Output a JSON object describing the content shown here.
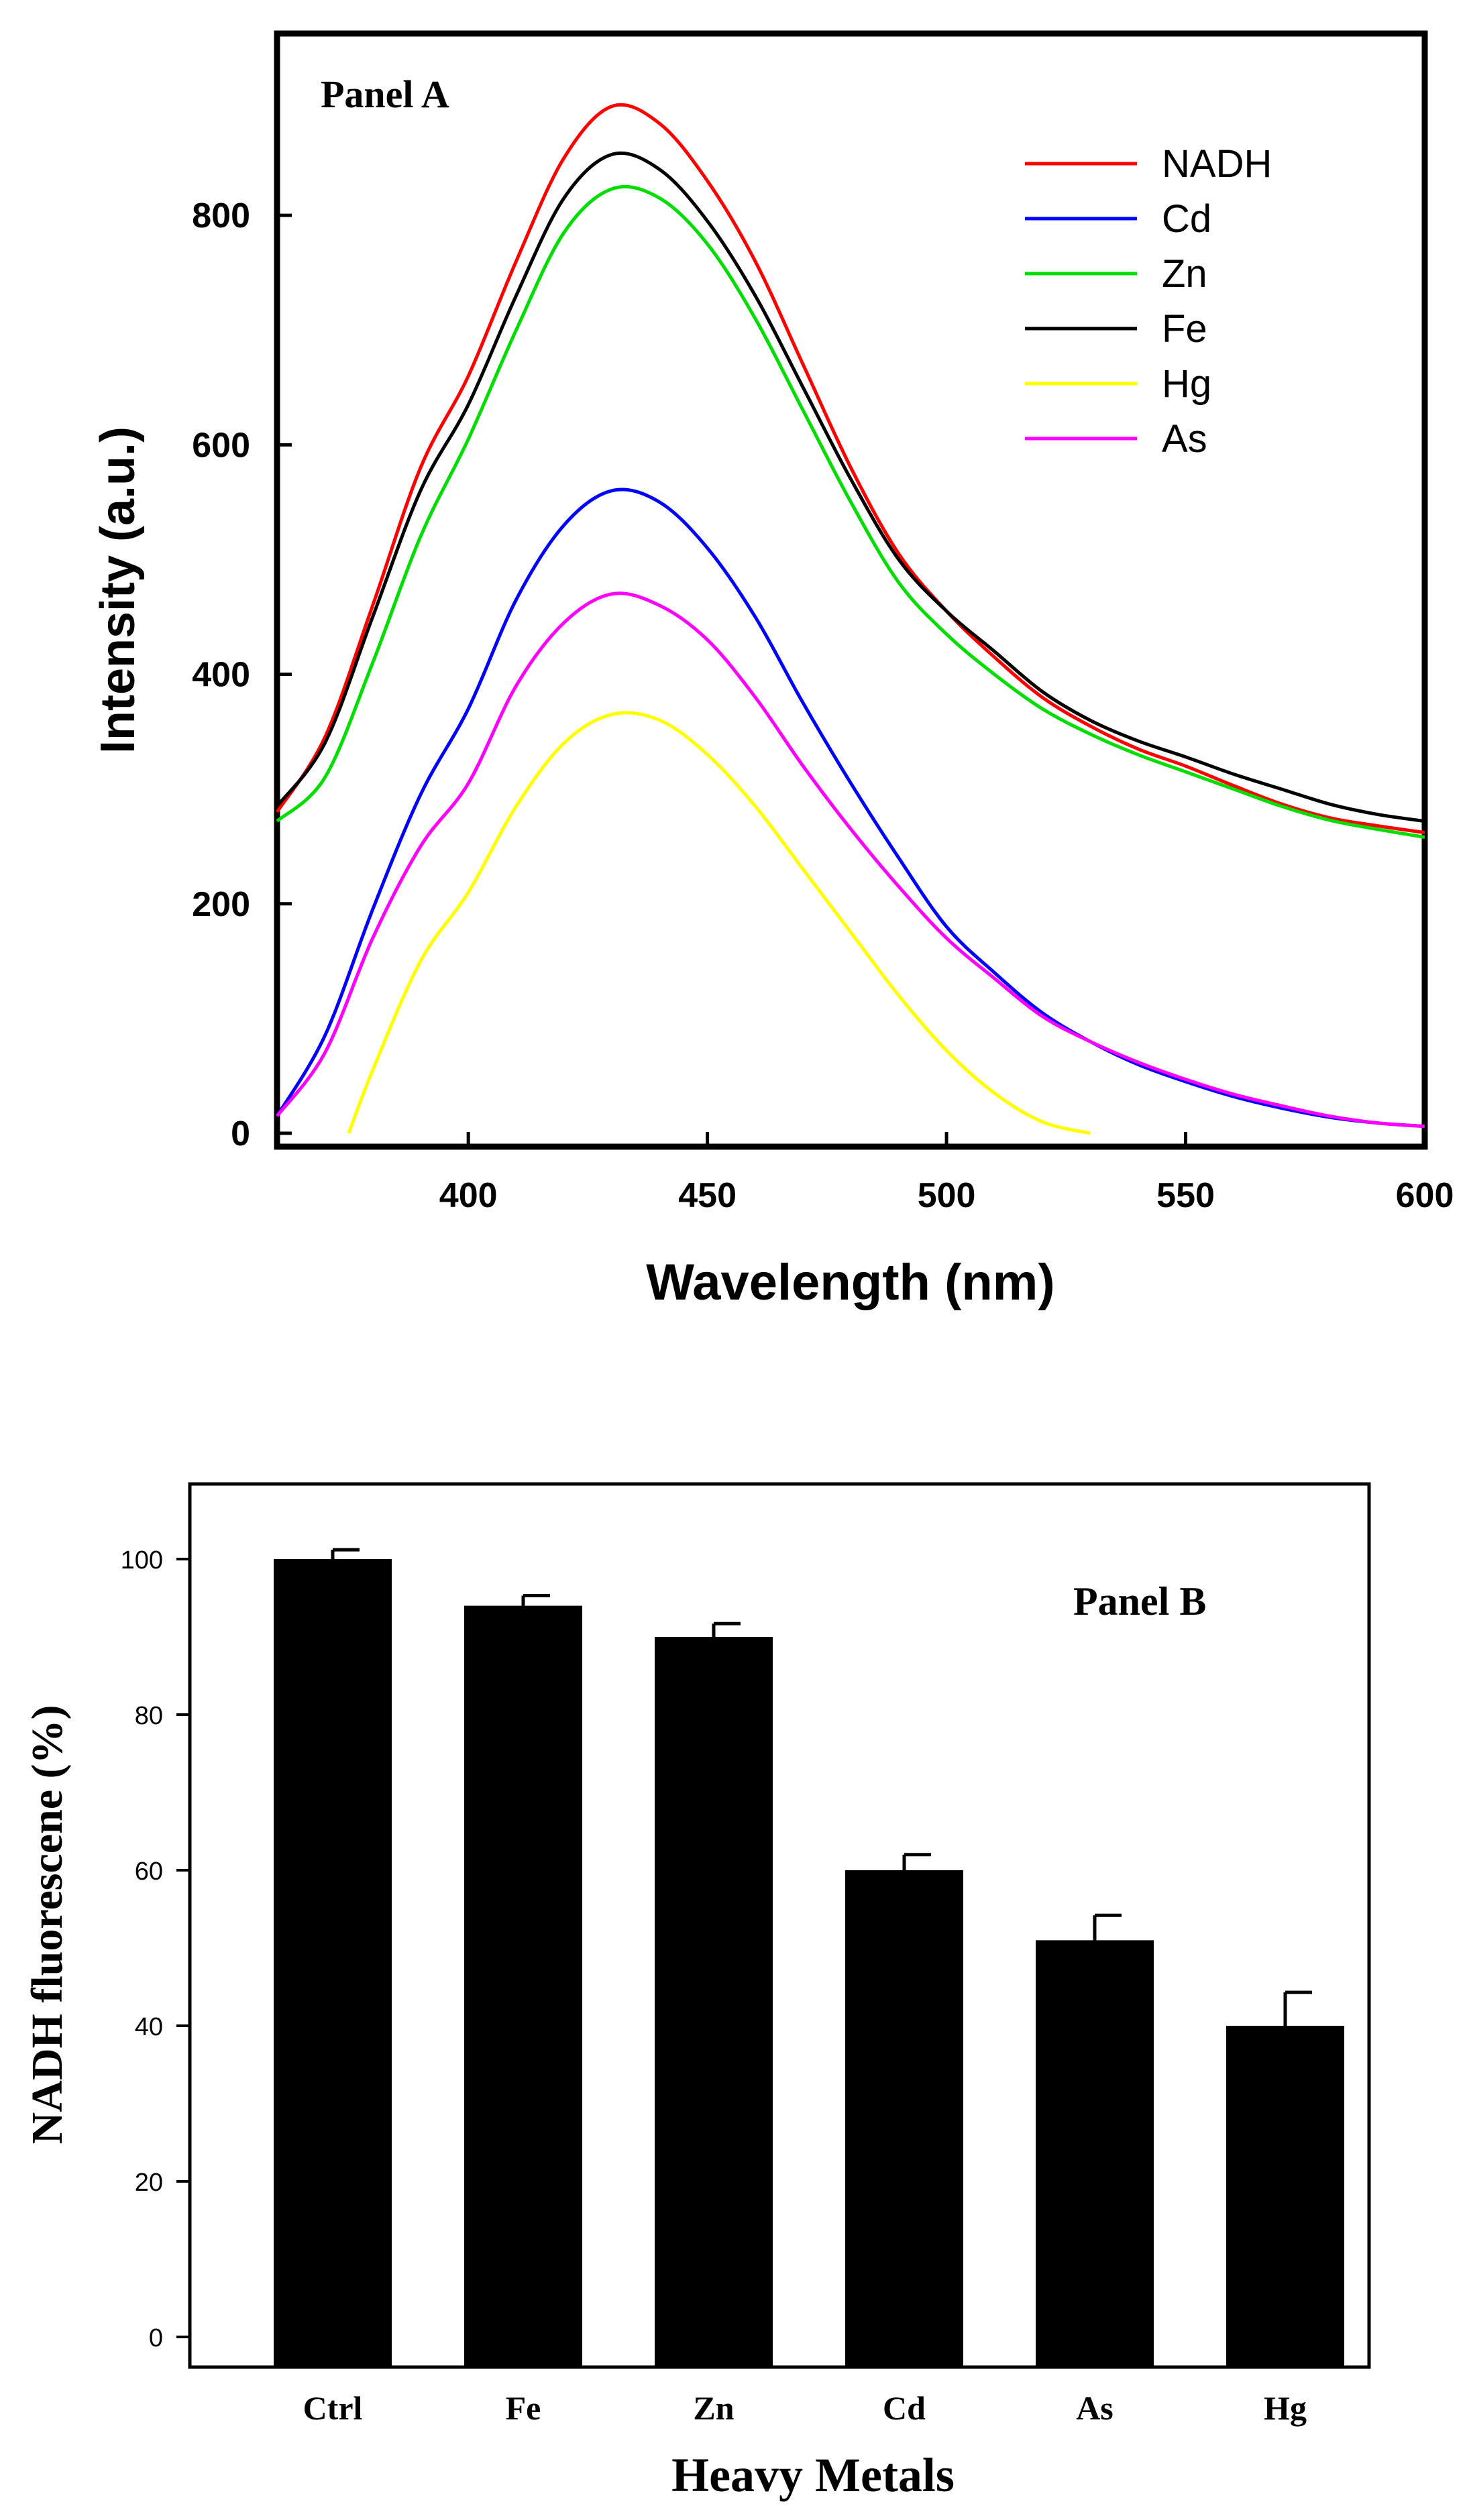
{
  "chart_data": [
    {
      "type": "line",
      "panel_label": "Panel A",
      "xlabel": "Wavelength (nm)",
      "ylabel": "Intensity (a.u.)",
      "xlim": [
        360,
        600
      ],
      "ylim": [
        0,
        900
      ],
      "xticks": [
        400,
        450,
        500,
        550,
        600
      ],
      "yticks": [
        0,
        200,
        400,
        600,
        800
      ],
      "legend_position": "top-right",
      "series": [
        {
          "name": "NADH",
          "color": "#ff0000",
          "x": [
            360,
            370,
            380,
            390,
            400,
            410,
            420,
            430,
            440,
            450,
            460,
            470,
            480,
            490,
            500,
            510,
            520,
            530,
            540,
            550,
            560,
            570,
            580,
            590,
            600
          ],
          "y": [
            280,
            345,
            460,
            580,
            660,
            760,
            850,
            895,
            880,
            830,
            760,
            670,
            580,
            505,
            455,
            415,
            380,
            355,
            335,
            320,
            303,
            287,
            275,
            268,
            262
          ]
        },
        {
          "name": "Cd",
          "color": "#0000ff",
          "x": [
            360,
            370,
            380,
            390,
            400,
            410,
            420,
            430,
            440,
            450,
            460,
            470,
            480,
            490,
            500,
            510,
            520,
            530,
            540,
            550,
            560,
            570,
            580,
            590,
            600
          ],
          "y": [
            15,
            85,
            195,
            295,
            370,
            465,
            530,
            560,
            550,
            510,
            450,
            375,
            305,
            240,
            180,
            140,
            105,
            80,
            60,
            45,
            32,
            22,
            14,
            9,
            6
          ]
        },
        {
          "name": "Zn",
          "color": "#00dd00",
          "x": [
            360,
            370,
            380,
            390,
            400,
            410,
            420,
            430,
            440,
            450,
            460,
            470,
            480,
            490,
            500,
            510,
            520,
            530,
            540,
            550,
            560,
            570,
            580,
            590,
            600
          ],
          "y": [
            272,
            310,
            410,
            520,
            605,
            700,
            785,
            823,
            815,
            775,
            710,
            630,
            550,
            480,
            435,
            400,
            370,
            348,
            330,
            315,
            300,
            285,
            273,
            265,
            258
          ]
        },
        {
          "name": "Fe",
          "color": "#000000",
          "x": [
            360,
            370,
            380,
            390,
            400,
            410,
            420,
            430,
            440,
            450,
            460,
            470,
            480,
            490,
            500,
            510,
            520,
            530,
            540,
            550,
            560,
            570,
            580,
            590,
            600
          ],
          "y": [
            285,
            340,
            450,
            560,
            635,
            730,
            815,
            853,
            840,
            795,
            730,
            650,
            570,
            500,
            455,
            420,
            385,
            360,
            342,
            328,
            313,
            300,
            287,
            278,
            272
          ]
        },
        {
          "name": "Hg",
          "color": "#ffff00",
          "x": [
            375,
            380,
            390,
            400,
            410,
            420,
            430,
            440,
            450,
            460,
            470,
            480,
            490,
            500,
            510,
            520,
            530
          ],
          "y": [
            0,
            55,
            150,
            210,
            285,
            340,
            365,
            360,
            330,
            285,
            230,
            175,
            120,
            72,
            35,
            10,
            0
          ]
        },
        {
          "name": "As",
          "color": "#ff00ff",
          "x": [
            360,
            370,
            380,
            390,
            400,
            410,
            420,
            430,
            440,
            450,
            460,
            470,
            480,
            490,
            500,
            510,
            520,
            530,
            540,
            550,
            560,
            570,
            580,
            590,
            600
          ],
          "y": [
            15,
            70,
            170,
            250,
            305,
            390,
            445,
            470,
            460,
            430,
            380,
            320,
            265,
            215,
            170,
            135,
            102,
            80,
            62,
            47,
            34,
            24,
            15,
            9,
            6
          ]
        }
      ]
    },
    {
      "type": "bar",
      "panel_label": "Panel B",
      "xlabel": "Heavy Metals",
      "ylabel": "NADH fluorescene (%)",
      "ylim": [
        0,
        110
      ],
      "yticks": [
        0,
        20,
        40,
        60,
        80,
        100
      ],
      "categories": [
        "Ctrl",
        "Fe",
        "Zn",
        "Cd",
        "As",
        "Hg"
      ],
      "values": [
        100,
        94,
        90,
        60,
        51,
        40
      ],
      "errors": [
        1.2,
        1.3,
        1.7,
        2.0,
        3.2,
        4.3
      ],
      "bar_color": "#000000"
    }
  ]
}
